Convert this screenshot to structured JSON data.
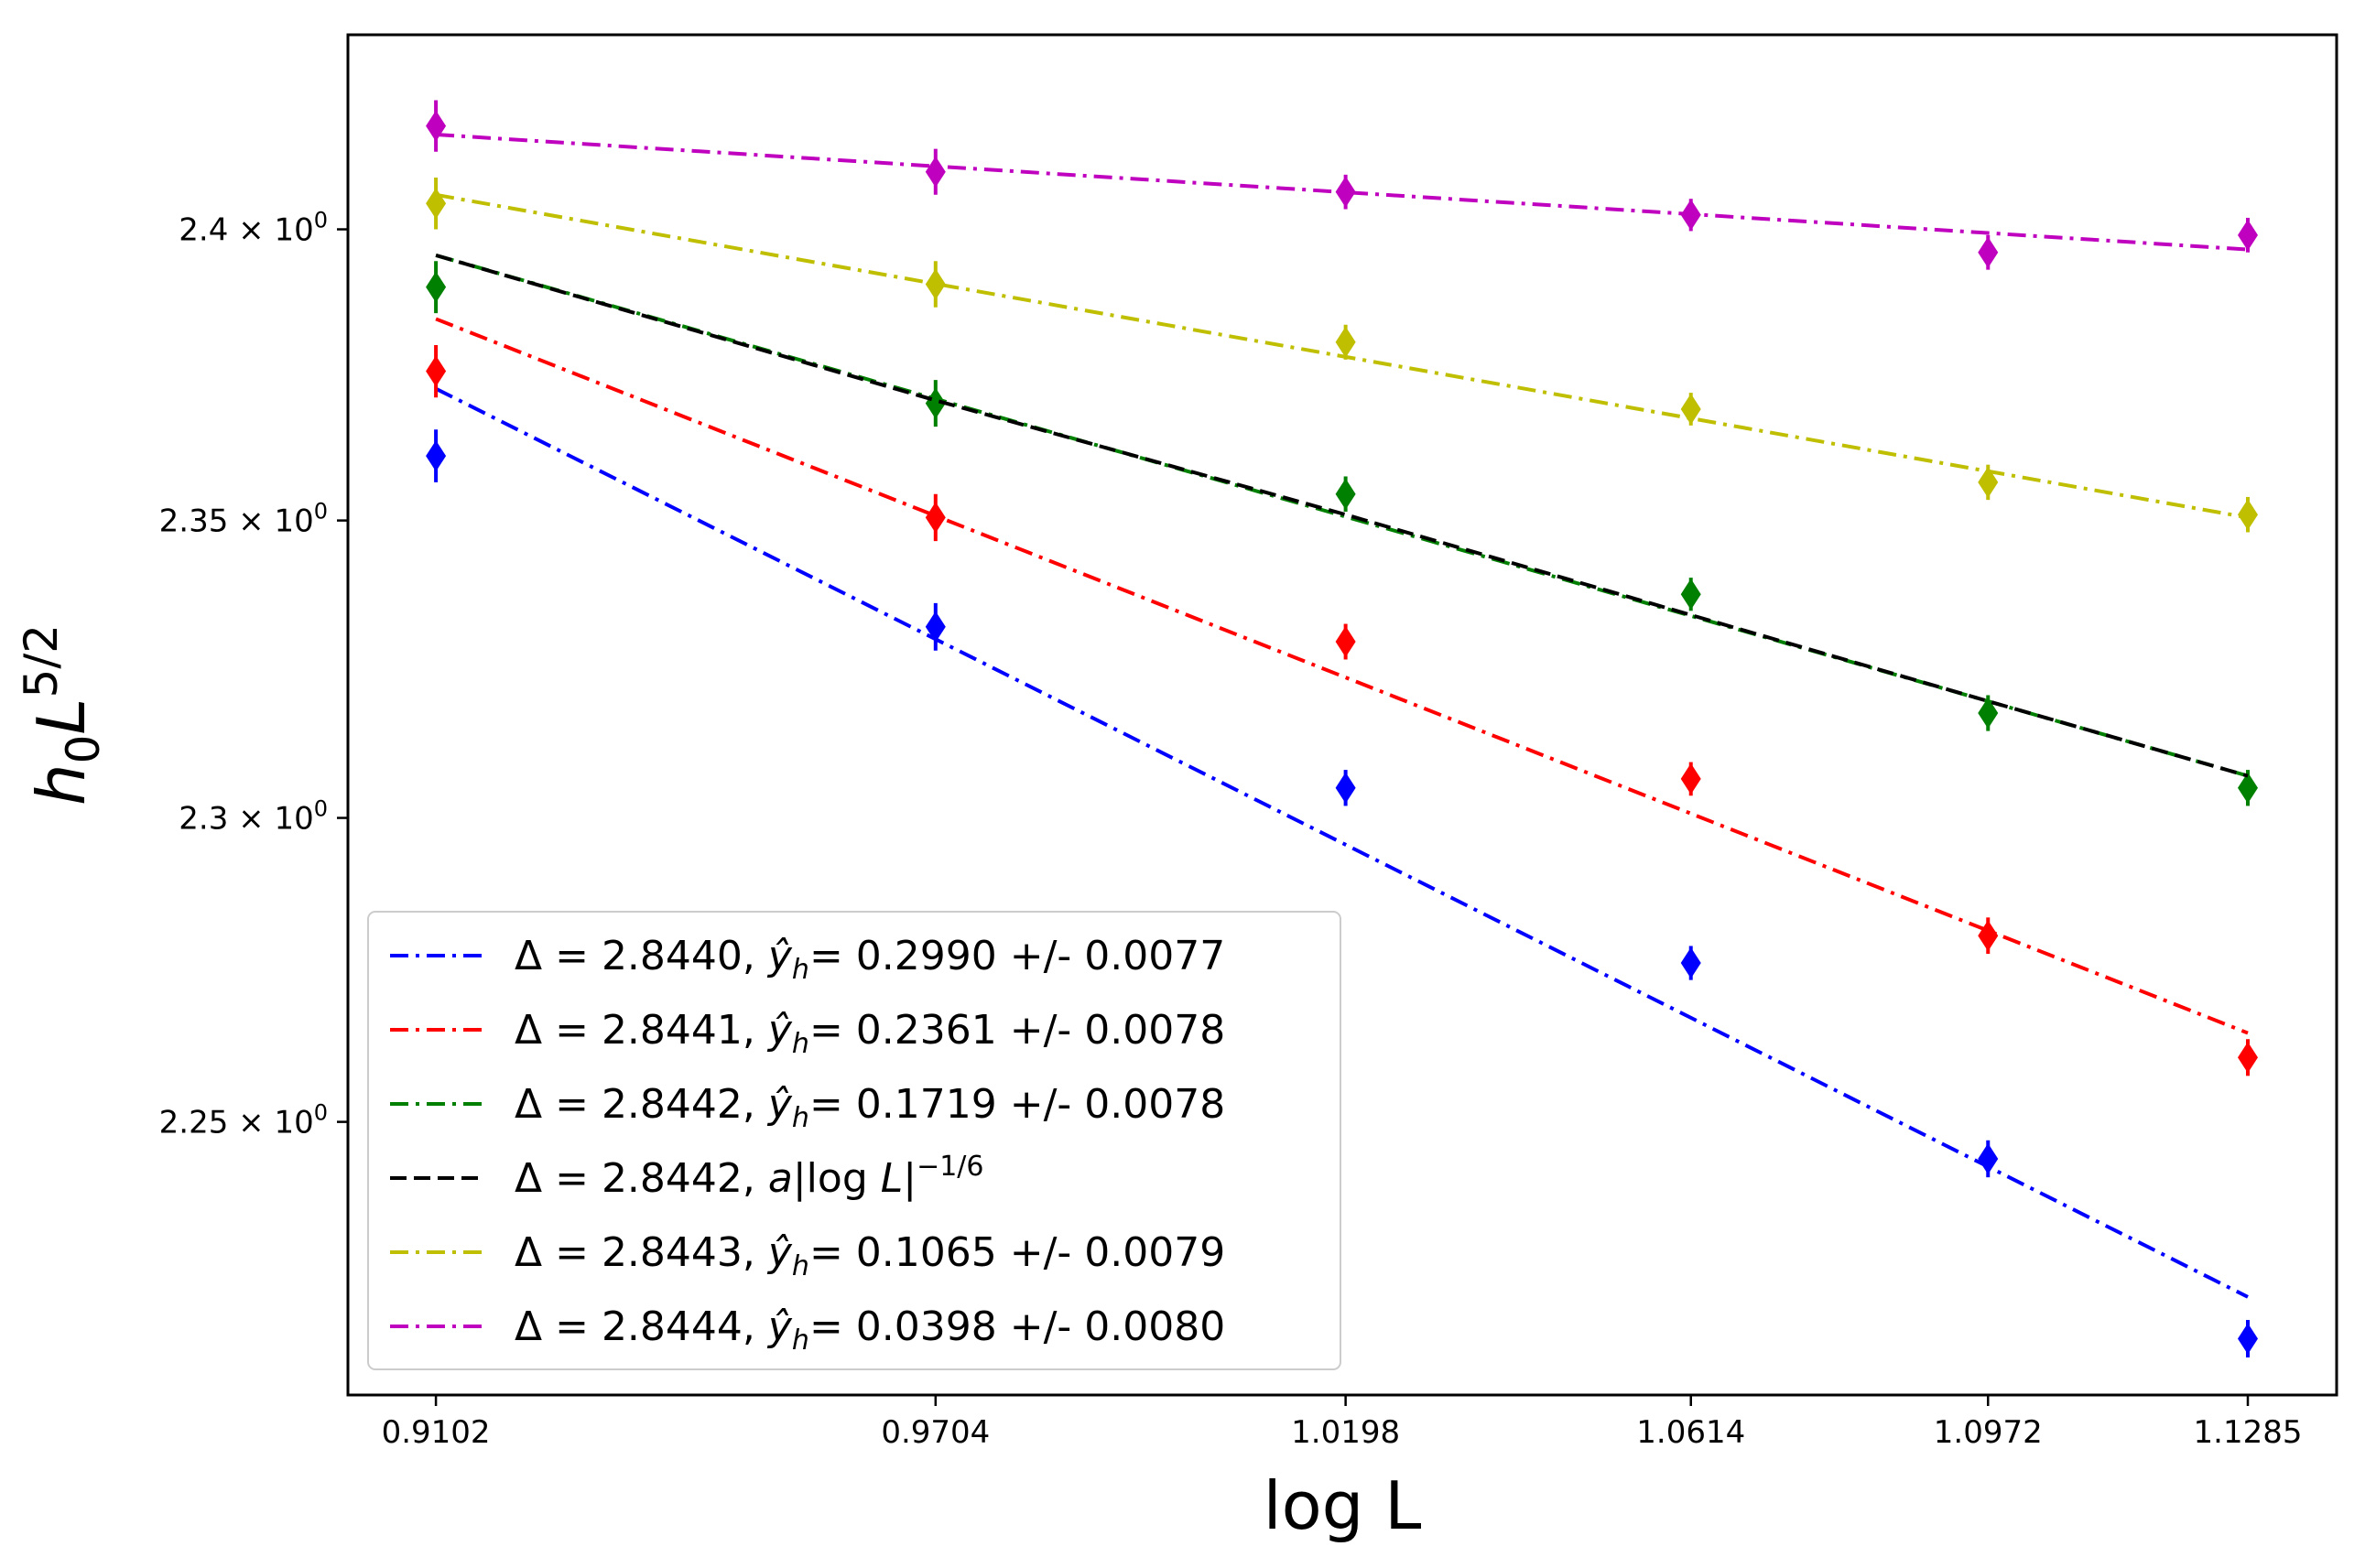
{
  "chart_data": {
    "type": "line",
    "title": "",
    "xlabel": "log L",
    "ylabel": "h₀L⁵ᐟ²",
    "ylabel_parts": {
      "base": "h",
      "sub": "0",
      "mid": "L",
      "sup": "5/2"
    },
    "x_ticks": [
      0.9102,
      0.9704,
      1.0198,
      1.0614,
      1.0972,
      1.1285
    ],
    "x_tick_labels": [
      "0.9102",
      "0.9704",
      "1.0198",
      "1.0614",
      "1.0972",
      "1.1285"
    ],
    "xlim": [
      0.8996,
      1.1392
    ],
    "y_ticks": [
      2.25,
      2.3,
      2.35,
      2.4
    ],
    "y_tick_labels": [
      "2.25 × 10⁰",
      "2.3 × 10⁰",
      "2.35 × 10⁰",
      "2.4 × 10⁰"
    ],
    "y_tick_mantissa": [
      "2.25",
      "2.3",
      "2.35",
      "2.4"
    ],
    "y_tick_exp_base": "10",
    "y_tick_exp": "0",
    "ylim": [
      2.206,
      2.434
    ],
    "yscale": "log",
    "legend_position": "lower-left",
    "series": [
      {
        "name": "Δ = 2.8440, ŷ_h =  0.2990 +/-  0.0077",
        "legend_prefix": "Δ = 2.8440, ",
        "legend_suffix": "=  0.2990 +/-  0.0077",
        "color": "#0000ff",
        "dash": "dashdot",
        "fit": [
          [
            0.9102,
            2.3725
          ],
          [
            1.1285,
            2.2217
          ]
        ],
        "points": [
          [
            0.9102,
            2.361
          ],
          [
            0.9704,
            2.332
          ],
          [
            1.0198,
            2.305
          ],
          [
            1.0614,
            2.276
          ],
          [
            1.0972,
            2.244
          ],
          [
            1.1285,
            2.215
          ]
        ],
        "errors": [
          0.0045,
          0.004,
          0.003,
          0.0028,
          0.003,
          0.003
        ]
      },
      {
        "name": "Δ = 2.8441, ŷ_h =  0.2361 +/-  0.0078",
        "legend_prefix": "Δ = 2.8441, ",
        "legend_suffix": "=  0.2361 +/-  0.0078",
        "color": "#ff0000",
        "dash": "dashdot",
        "fit": [
          [
            0.9102,
            2.3845
          ],
          [
            1.1285,
            2.2645
          ]
        ],
        "points": [
          [
            0.9102,
            2.3755
          ],
          [
            0.9704,
            2.3505
          ],
          [
            1.0198,
            2.3295
          ],
          [
            1.0614,
            2.3065
          ],
          [
            1.0972,
            2.2805
          ],
          [
            1.1285,
            2.2605
          ]
        ],
        "errors": [
          0.0045,
          0.004,
          0.003,
          0.0028,
          0.003,
          0.003
        ]
      },
      {
        "name": "Δ = 2.8442, ŷ_h =  0.1719 +/-  0.0078",
        "legend_prefix": "Δ = 2.8442, ",
        "legend_suffix": "=  0.1719 +/-  0.0078",
        "color": "#008000",
        "dash": "dashdot",
        "fit": [
          [
            0.9102,
            2.3955
          ],
          [
            1.1285,
            2.307
          ]
        ],
        "points": [
          [
            0.9102,
            2.39
          ],
          [
            0.9704,
            2.37
          ],
          [
            1.0198,
            2.3545
          ],
          [
            1.0614,
            2.3375
          ],
          [
            1.0972,
            2.3175
          ],
          [
            1.1285,
            2.305
          ]
        ],
        "errors": [
          0.0045,
          0.004,
          0.003,
          0.0028,
          0.003,
          0.003
        ]
      },
      {
        "name": "Δ = 2.8442, a|log L|⁻¹ᐟ⁶",
        "legend_prefix": "Δ = 2.8442, ",
        "legend_suffix": "a|log L|",
        "legend_sup": "−1/6",
        "color": "#000000",
        "dash": "dashed",
        "fit": [
          [
            0.9102,
            2.3955
          ],
          [
            0.9704,
            2.3705
          ],
          [
            1.0198,
            2.351
          ],
          [
            1.0614,
            2.334
          ],
          [
            1.0972,
            2.3195
          ],
          [
            1.1285,
            2.307
          ]
        ],
        "points": [],
        "errors": []
      },
      {
        "name": "Δ = 2.8443, ŷ_h =  0.1065 +/-  0.0079",
        "legend_prefix": "Δ = 2.8443, ",
        "legend_suffix": "=  0.1065 +/-  0.0079",
        "color": "#bfbf00",
        "dash": "dashdot",
        "fit": [
          [
            0.9102,
            2.406
          ],
          [
            1.1285,
            2.3505
          ]
        ],
        "points": [
          [
            0.9102,
            2.4045
          ],
          [
            0.9704,
            2.3905
          ],
          [
            1.0198,
            2.3805
          ],
          [
            1.0614,
            2.369
          ],
          [
            1.0972,
            2.3565
          ],
          [
            1.1285,
            2.351
          ]
        ],
        "errors": [
          0.0045,
          0.004,
          0.003,
          0.0028,
          0.003,
          0.003
        ]
      },
      {
        "name": "Δ = 2.8444, ŷ_h =  0.0398 +/-  0.0080",
        "legend_prefix": "Δ = 2.8444, ",
        "legend_suffix": "=  0.0398 +/-  0.0080",
        "color": "#bf00bf",
        "dash": "dashdot",
        "fit": [
          [
            0.9102,
            2.4165
          ],
          [
            1.1285,
            2.3965
          ]
        ],
        "points": [
          [
            0.9102,
            2.418
          ],
          [
            0.9704,
            2.41
          ],
          [
            1.0198,
            2.4065
          ],
          [
            1.0614,
            2.4025
          ],
          [
            1.0972,
            2.396
          ],
          [
            1.1285,
            2.399
          ]
        ],
        "errors": [
          0.0045,
          0.004,
          0.003,
          0.0028,
          0.003,
          0.003
        ]
      }
    ]
  }
}
